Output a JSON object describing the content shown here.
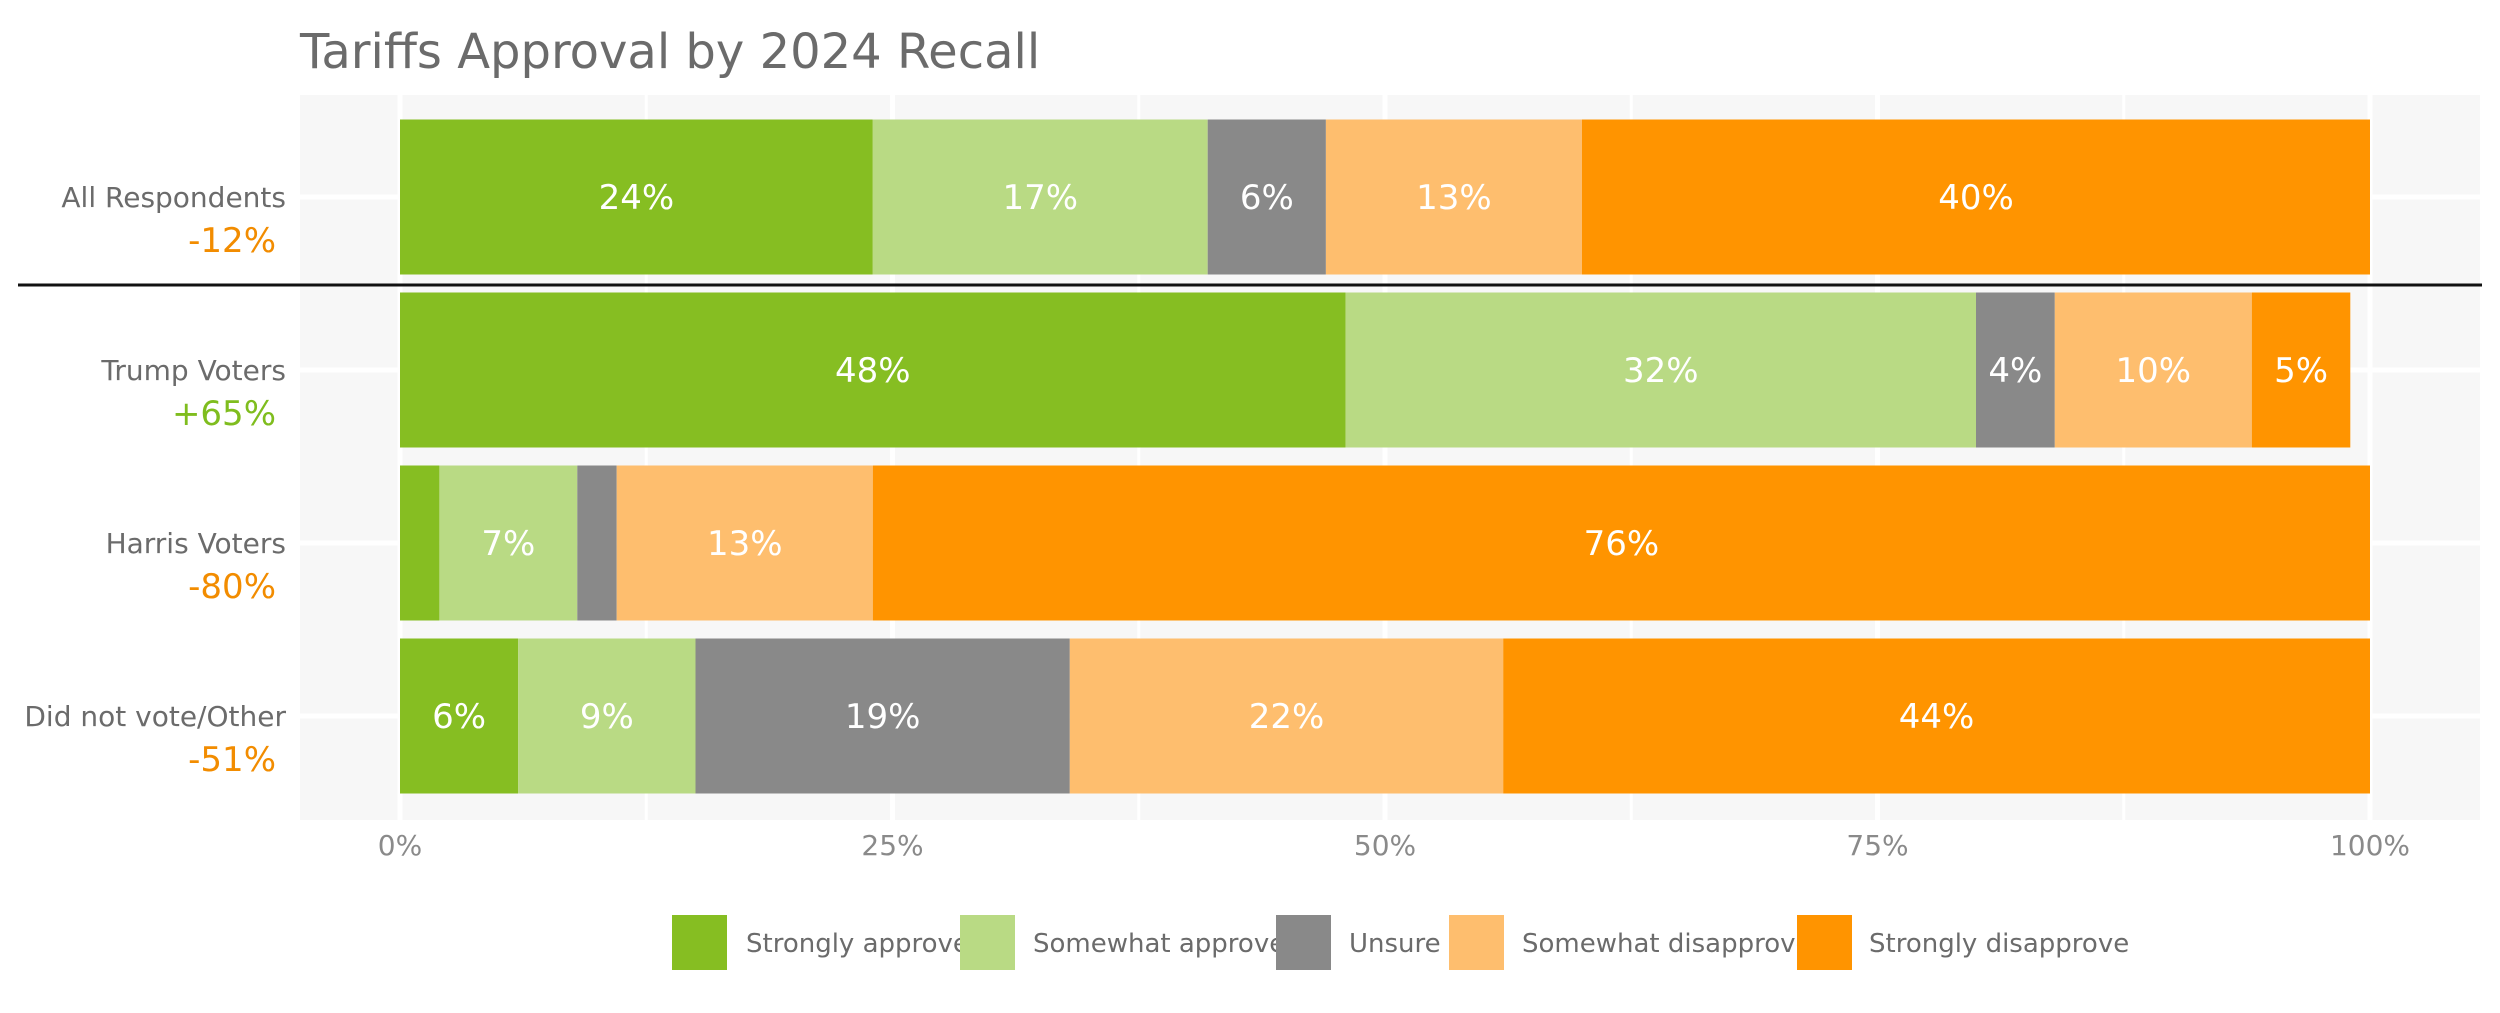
{
  "chart_data": {
    "type": "bar",
    "orientation": "horizontal",
    "stacked": true,
    "title": "Tariffs Approval by 2024 Recall",
    "xlabel": "",
    "ylabel": "",
    "xlim": [
      0,
      100
    ],
    "x_ticks": [
      0,
      25,
      50,
      75,
      100
    ],
    "x_tick_labels": [
      "0%",
      "25%",
      "50%",
      "75%",
      "100%"
    ],
    "grid": true,
    "legend_position": "bottom",
    "categories": [
      "All Respondents",
      "Trump Voters",
      "Harris Voters",
      "Did not vote/Other"
    ],
    "net_labels": [
      "-12%",
      "+65%",
      "-80%",
      "-51%"
    ],
    "net_colors": [
      "#f28c00",
      "#7fbd1e",
      "#f28c00",
      "#f28c00"
    ],
    "series": [
      {
        "name": "Strongly approve",
        "color": "#86be22",
        "values": [
          24,
          48,
          2,
          6
        ],
        "labels": [
          "24%",
          "48%",
          "",
          "6%"
        ]
      },
      {
        "name": "Somewhat approve",
        "color": "#b9da84",
        "values": [
          17,
          32,
          7,
          9
        ],
        "labels": [
          "17%",
          "32%",
          "7%",
          "9%"
        ]
      },
      {
        "name": "Unsure",
        "color": "#898989",
        "values": [
          6,
          4,
          2,
          19
        ],
        "labels": [
          "6%",
          "4%",
          "",
          "19%"
        ]
      },
      {
        "name": "Somewhat disapprove",
        "color": "#febe6e",
        "values": [
          13,
          10,
          13,
          22
        ],
        "labels": [
          "13%",
          "10%",
          "13%",
          "22%"
        ]
      },
      {
        "name": "Strongly disapprove",
        "color": "#ff9400",
        "values": [
          40,
          5,
          76,
          44
        ],
        "labels": [
          "40%",
          "5%",
          "76%",
          "44%"
        ]
      }
    ]
  }
}
